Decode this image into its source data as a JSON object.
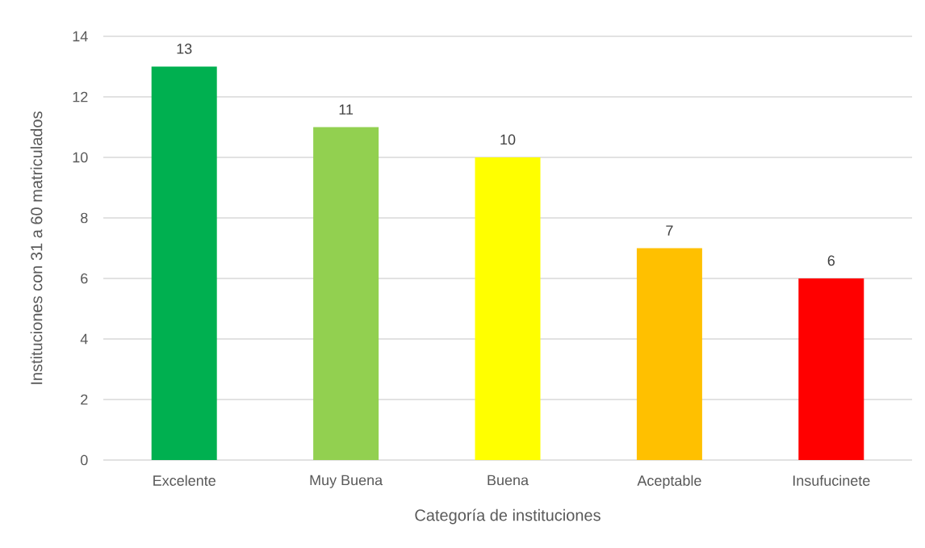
{
  "chart_data": {
    "type": "bar",
    "xlabel": "Categoría de instituciones",
    "ylabel": "Instituciones con 31 a 60 matriculados",
    "categories": [
      "Excelente",
      "Muy Buena",
      "Buena",
      "Aceptable",
      "Insufucinete"
    ],
    "values": [
      13,
      11,
      10,
      7,
      6
    ],
    "colors": [
      "#00b050",
      "#92d050",
      "#ffff00",
      "#ffc000",
      "#ff0000"
    ],
    "ylim": [
      0,
      14
    ],
    "yticks": [
      0,
      2,
      4,
      6,
      8,
      10,
      12,
      14
    ],
    "grid": "y",
    "data_labels": true
  }
}
